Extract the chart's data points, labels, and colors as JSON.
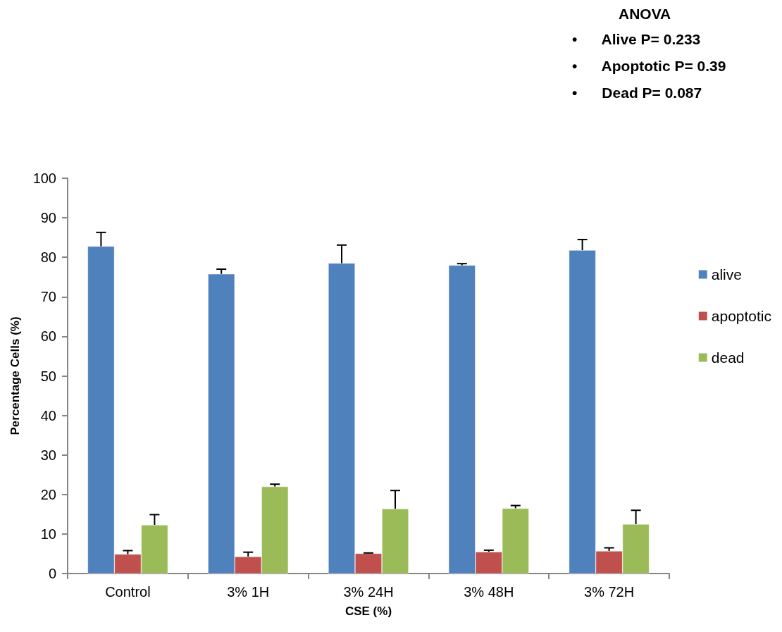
{
  "chart_data": {
    "type": "bar",
    "xlabel": "CSE (%)",
    "ylabel": "Percentage Cells (%)",
    "categories": [
      "Control",
      "3% 1H",
      "3% 24H",
      "3% 48H",
      "3% 72H"
    ],
    "series": [
      {
        "name": "alive",
        "color": "#4f81bd",
        "values": [
          82.8,
          75.8,
          78.5,
          78.0,
          81.8
        ],
        "errors": [
          [
            82.8,
            86.3
          ],
          [
            75.8,
            77.0
          ],
          [
            78.5,
            83.1
          ],
          [
            78.0,
            78.4
          ],
          [
            81.8,
            84.5
          ]
        ]
      },
      {
        "name": "apoptotic",
        "color": "#c0504d",
        "values": [
          4.9,
          4.3,
          5.1,
          5.5,
          5.7
        ],
        "errors": [
          [
            4.9,
            5.8
          ],
          [
            4.3,
            5.4
          ],
          [
            5.1,
            5.2
          ],
          [
            5.5,
            5.9
          ],
          [
            5.7,
            6.5
          ]
        ]
      },
      {
        "name": "dead",
        "color": "#9bbb59",
        "values": [
          12.3,
          22.0,
          16.4,
          16.5,
          12.5
        ],
        "errors": [
          [
            12.3,
            14.9
          ],
          [
            22.0,
            22.6
          ],
          [
            16.4,
            21.0
          ],
          [
            16.5,
            17.2
          ],
          [
            12.5,
            16.0
          ]
        ]
      }
    ],
    "ylim": [
      0,
      100
    ],
    "yticks": [
      0,
      10,
      20,
      30,
      40,
      50,
      60,
      70,
      80,
      90,
      100
    ],
    "grid": false,
    "legend": "right",
    "annotations": [
      "ANOVA",
      "•      Alive P= 0.233",
      "•      Apoptotic P= 0.39",
      "•      Dead P= 0.087"
    ]
  }
}
